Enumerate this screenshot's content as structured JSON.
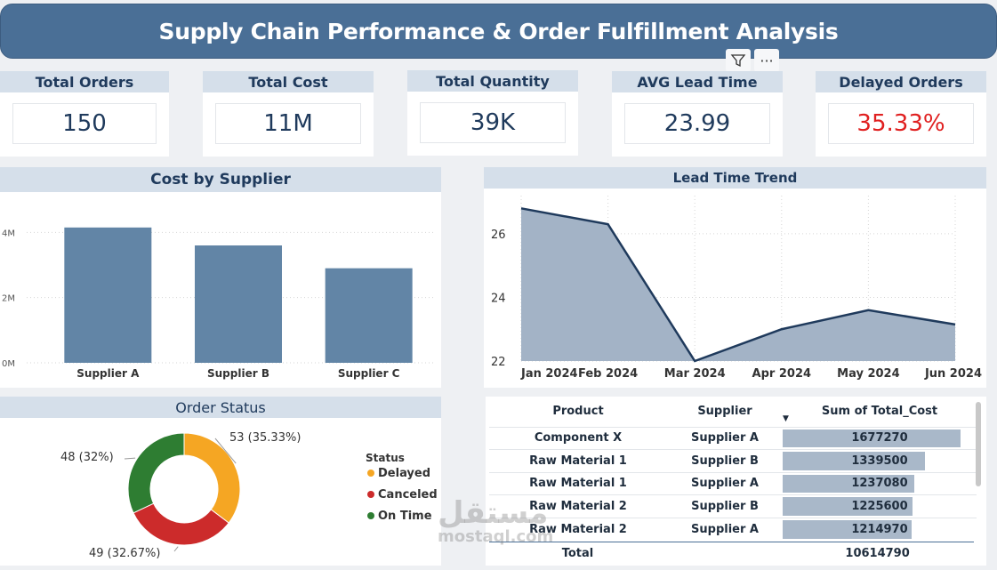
{
  "header": {
    "title": "Supply Chain Performance & Order Fulfillment Analysis"
  },
  "toolbar": {
    "filter_icon": "filter-icon",
    "more_icon": "more-options-icon",
    "more_label": "···"
  },
  "kpis": [
    {
      "label": "Total Orders",
      "value": "150",
      "color": "#1f3a5c"
    },
    {
      "label": "Total Cost",
      "value": "11M",
      "color": "#1f3a5c"
    },
    {
      "label": "Total Quantity",
      "value": "39K",
      "color": "#1f3a5c"
    },
    {
      "label": "AVG Lead Time",
      "value": "23.99",
      "color": "#1f3a5c"
    },
    {
      "label": "Delayed Orders",
      "value": "35.33%",
      "color": "#e02020"
    }
  ],
  "chart_data": [
    {
      "type": "bar",
      "title": "Cost by Supplier",
      "categories": [
        "Supplier A",
        "Supplier B",
        "Supplier C"
      ],
      "values": [
        4.15,
        3.6,
        2.9
      ],
      "unit": "M",
      "yticks": [
        "0M",
        "2M",
        "4M"
      ],
      "ytick_values": [
        0,
        2,
        4
      ],
      "ylim": [
        0,
        4.8
      ],
      "grid": true,
      "color": "#6285a6"
    },
    {
      "type": "area",
      "title": "Lead Time Trend",
      "x": [
        "Jan 2024",
        "Feb 2024",
        "Mar 2024",
        "Apr 2024",
        "May 2024",
        "Jun 2024"
      ],
      "values": [
        26.8,
        26.3,
        22.0,
        23.0,
        23.6,
        23.15
      ],
      "yticks": [
        "22",
        "24",
        "26"
      ],
      "ytick_values": [
        22,
        24,
        26
      ],
      "ylim": [
        22,
        27.2
      ],
      "grid": true,
      "line_color": "#1f3a5c",
      "fill_color": "#a3b3c6"
    },
    {
      "type": "pie",
      "title": "Order Status",
      "legend_title": "Status",
      "legend_position": "right",
      "slices": [
        {
          "name": "Delayed",
          "value": 53,
          "label": "53 (35.33%)",
          "color": "#f5a623"
        },
        {
          "name": "Canceled",
          "value": 49,
          "label": "49 (32.67%)",
          "color": "#cc2b2b"
        },
        {
          "name": "On Time",
          "value": 48,
          "label": "48 (32%)",
          "color": "#2e7d32"
        }
      ]
    },
    {
      "type": "table",
      "columns": [
        "Product",
        "Supplier",
        "Sum of Total_Cost"
      ],
      "rows": [
        [
          "Component X",
          "Supplier A",
          1677270
        ],
        [
          "Raw Material 1",
          "Supplier B",
          1339500
        ],
        [
          "Raw Material 1",
          "Supplier A",
          1237080
        ],
        [
          "Raw Material 2",
          "Supplier B",
          1225600
        ],
        [
          "Raw Material 2",
          "Supplier A",
          1214970
        ]
      ],
      "total_label": "Total",
      "total_value": "10614790"
    }
  ],
  "watermark": {
    "arabic": "مستقل",
    "latin": "mostaql.com"
  }
}
